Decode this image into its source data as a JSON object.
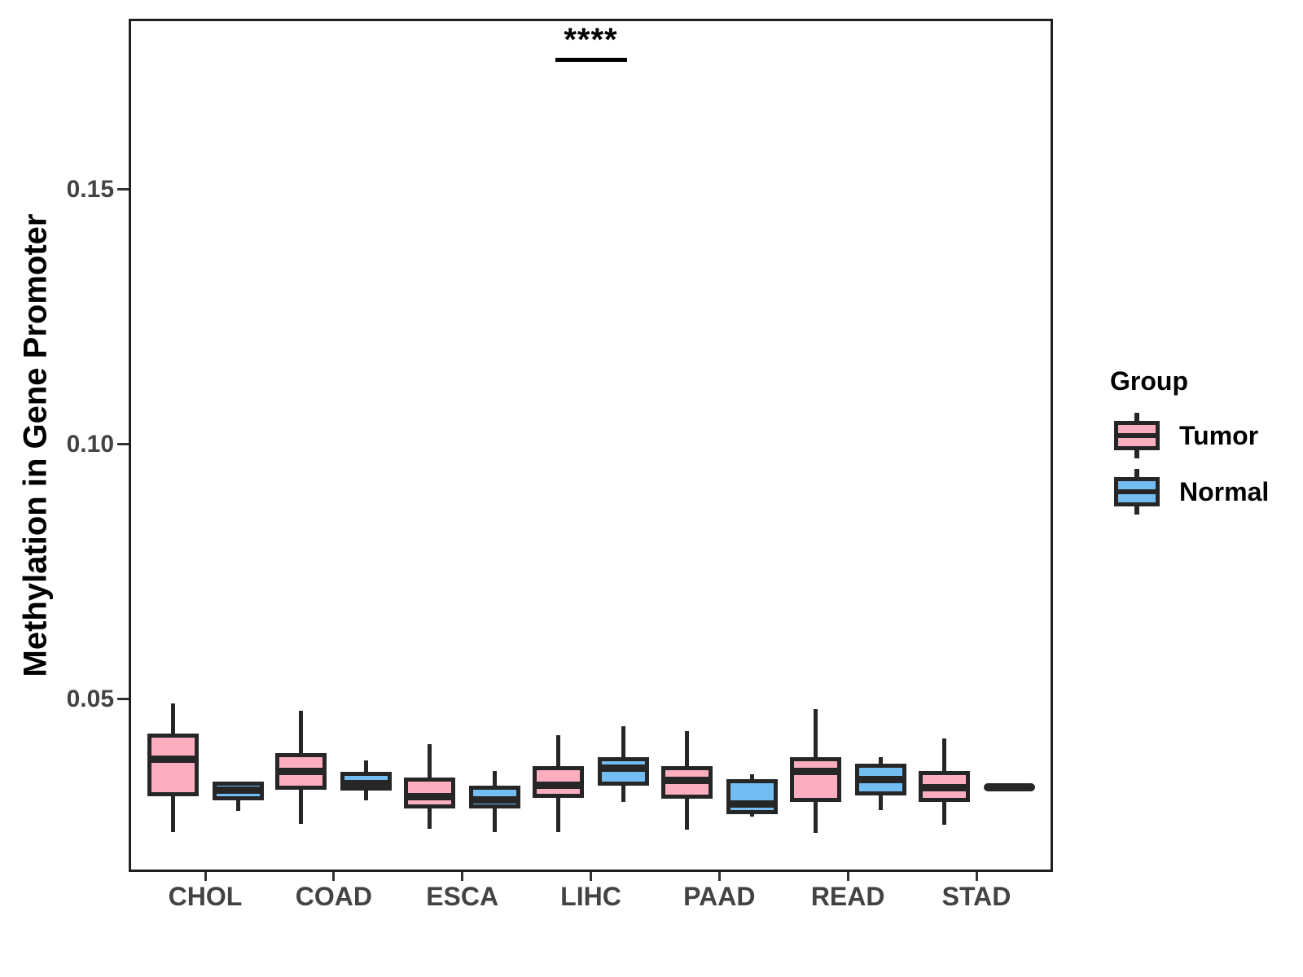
{
  "figure": {
    "y_axis_title": "Methylation in Gene Promoter",
    "y_ticks": [
      {
        "label": "0.05",
        "value": 0.05
      },
      {
        "label": "0.10",
        "value": 0.1
      },
      {
        "label": "0.15",
        "value": 0.15
      }
    ],
    "legend": {
      "title": "Group",
      "items": [
        {
          "label": "Tumor"
        },
        {
          "label": "Normal"
        }
      ]
    }
  },
  "chart_data": {
    "type": "grouped_boxplot",
    "title": "",
    "xlabel": "",
    "ylabel": "Methylation in Gene Promoter",
    "categories": [
      "CHOL",
      "COAD",
      "ESCA",
      "LIHC",
      "PAAD",
      "READ",
      "STAD"
    ],
    "groups": [
      "Tumor",
      "Normal"
    ],
    "group_colors": {
      "Tumor": "#FAAEC0",
      "Normal": "#73BDF2"
    },
    "ylim": [
      0.0161,
      0.1835
    ],
    "y_tick_values": [
      0.05,
      0.1,
      0.15
    ],
    "grid": false,
    "legend_position": "right",
    "series": [
      {
        "name": "Tumor",
        "boxes": [
          {
            "category": "CHOL",
            "whisker_low": 0.024,
            "q1": 0.0313,
            "median": 0.0383,
            "q3": 0.0428,
            "whisker_high": 0.0492
          },
          {
            "category": "COAD",
            "whisker_low": 0.0256,
            "q1": 0.0327,
            "median": 0.0359,
            "q3": 0.0391,
            "whisker_high": 0.0478
          },
          {
            "category": "ESCA",
            "whisker_low": 0.0246,
            "q1": 0.0289,
            "median": 0.0308,
            "q3": 0.0343,
            "whisker_high": 0.0411
          },
          {
            "category": "LIHC",
            "whisker_low": 0.024,
            "q1": 0.0311,
            "median": 0.0331,
            "q3": 0.0364,
            "whisker_high": 0.043
          },
          {
            "category": "PAAD",
            "whisker_low": 0.0244,
            "q1": 0.0308,
            "median": 0.034,
            "q3": 0.0364,
            "whisker_high": 0.0438
          },
          {
            "category": "READ",
            "whisker_low": 0.0238,
            "q1": 0.0302,
            "median": 0.0358,
            "q3": 0.0382,
            "whisker_high": 0.0481
          },
          {
            "category": "STAD",
            "whisker_low": 0.0254,
            "q1": 0.0303,
            "median": 0.0327,
            "q3": 0.0355,
            "whisker_high": 0.0423
          }
        ]
      },
      {
        "name": "Normal",
        "boxes": [
          {
            "category": "CHOL",
            "whisker_low": 0.0281,
            "q1": 0.0305,
            "median": 0.0321,
            "q3": 0.0334,
            "whisker_high": 0.0334
          },
          {
            "category": "COAD",
            "whisker_low": 0.0302,
            "q1": 0.0324,
            "median": 0.0335,
            "q3": 0.0353,
            "whisker_high": 0.038
          },
          {
            "category": "ESCA",
            "whisker_low": 0.024,
            "q1": 0.029,
            "median": 0.0302,
            "q3": 0.0326,
            "whisker_high": 0.0359
          },
          {
            "category": "LIHC",
            "whisker_low": 0.0299,
            "q1": 0.0334,
            "median": 0.0365,
            "q3": 0.0383,
            "whisker_high": 0.0447
          },
          {
            "category": "PAAD",
            "whisker_low": 0.0269,
            "q1": 0.0278,
            "median": 0.0294,
            "q3": 0.0339,
            "whisker_high": 0.0352
          },
          {
            "category": "READ",
            "whisker_low": 0.0283,
            "q1": 0.0315,
            "median": 0.0343,
            "q3": 0.0369,
            "whisker_high": 0.0387
          },
          {
            "category": "STAD",
            "whisker_low": 0.0327,
            "q1": 0.0327,
            "median": 0.0327,
            "q3": 0.0327,
            "whisker_high": 0.0327
          }
        ]
      }
    ],
    "annotation": {
      "text": "****",
      "category": "LIHC",
      "compare": [
        "Tumor",
        "Normal"
      ],
      "y_value": 0.1755
    }
  }
}
